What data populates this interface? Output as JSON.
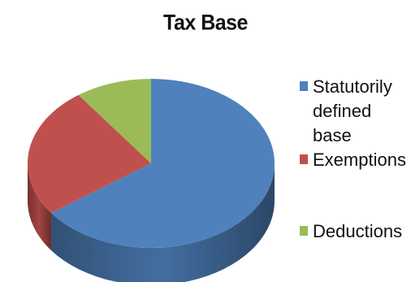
{
  "chart_data": {
    "type": "pie",
    "title": "Tax Base",
    "three_d": true,
    "slices": [
      {
        "label": "Statutorily defined base",
        "value": 65,
        "color": "#4F81BD"
      },
      {
        "label": "Exemptions",
        "value": 25,
        "color": "#C0504D"
      },
      {
        "label": "Deductions",
        "value": 10,
        "color": "#9BBB59"
      }
    ],
    "legend_position": "right"
  }
}
